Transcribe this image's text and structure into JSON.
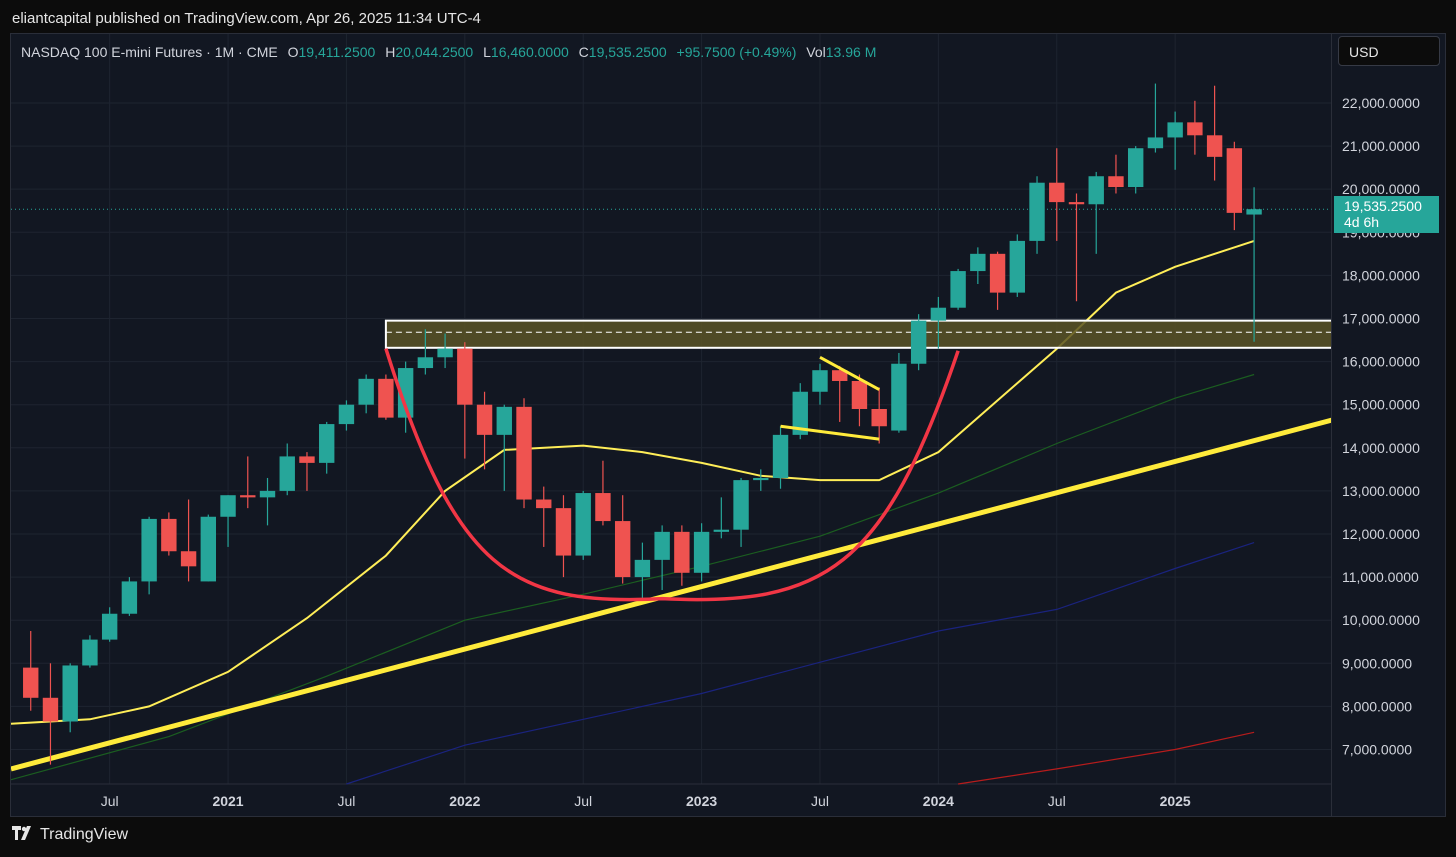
{
  "header": {
    "published": "eliantcapital published on TradingView.com, Apr 26, 2025 11:34 UTC-4"
  },
  "legend": {
    "symbol": "NASDAQ 100 E-mini Futures · 1M · CME",
    "o_label": "O",
    "o_value": "19,411.2500",
    "h_label": "H",
    "h_value": "20,044.2500",
    "l_label": "L",
    "l_value": "16,460.0000",
    "c_label": "C",
    "c_value": "19,535.2500",
    "change": "+95.7500 (+0.49%)",
    "vol_label": "Vol",
    "vol_value": "13.96 M"
  },
  "currency_button": "USD",
  "last_price": {
    "value": "19,535.2500",
    "countdown": "4d 6h"
  },
  "footer": {
    "brand": "TradingView",
    "logo": "tv-logo-icon"
  },
  "colors": {
    "up": "#26a69a",
    "down": "#ef5350",
    "background": "#121722",
    "ma_yellow": "#ffee58",
    "trend_yellow": "#ffeb3b",
    "cup_red": "#f23645",
    "ma_green": "#1b5e20",
    "ma_blue": "#1a237e",
    "ma_red": "#b71c1c",
    "zone_fill": "#5a5326"
  },
  "chart_data": {
    "type": "candlestick",
    "interval": "1M",
    "y_axis": {
      "range": [
        6200,
        23600
      ],
      "ticks": [
        7000,
        8000,
        9000,
        10000,
        11000,
        12000,
        13000,
        14000,
        15000,
        16000,
        17000,
        18000,
        19000,
        20000,
        21000,
        22000
      ],
      "tick_labels": [
        "7,000.0000",
        "8,000.0000",
        "9,000.0000",
        "10,000.0000",
        "11,000.0000",
        "12,000.0000",
        "13,000.0000",
        "14,000.0000",
        "15,000.0000",
        "16,000.0000",
        "17,000.0000",
        "18,000.0000",
        "19,000.0000",
        "20,000.0000",
        "21,000.0000",
        "22,000.0000"
      ]
    },
    "x_axis": {
      "range": [
        "2020-02",
        "2025-09"
      ],
      "ticks": [
        {
          "month": "2020-07",
          "label": "Jul",
          "bold": false
        },
        {
          "month": "2021-01",
          "label": "2021",
          "bold": true
        },
        {
          "month": "2021-07",
          "label": "Jul",
          "bold": false
        },
        {
          "month": "2022-01",
          "label": "2022",
          "bold": true
        },
        {
          "month": "2022-07",
          "label": "Jul",
          "bold": false
        },
        {
          "month": "2023-01",
          "label": "2023",
          "bold": true
        },
        {
          "month": "2023-07",
          "label": "Jul",
          "bold": false
        },
        {
          "month": "2024-01",
          "label": "2024",
          "bold": true
        },
        {
          "month": "2024-07",
          "label": "Jul",
          "bold": false
        },
        {
          "month": "2025-01",
          "label": "2025",
          "bold": true
        }
      ]
    },
    "candles": [
      {
        "month": "2020-03",
        "o": 8900,
        "h": 9750,
        "l": 7900,
        "c": 8200
      },
      {
        "month": "2020-04",
        "o": 8200,
        "h": 9000,
        "l": 6650,
        "c": 7650
      },
      {
        "month": "2020-05",
        "o": 7650,
        "h": 9000,
        "l": 7400,
        "c": 8950
      },
      {
        "month": "2020-06",
        "o": 8950,
        "h": 9650,
        "l": 8900,
        "c": 9550
      },
      {
        "month": "2020-07",
        "o": 9550,
        "h": 10300,
        "l": 9500,
        "c": 10150
      },
      {
        "month": "2020-08",
        "o": 10150,
        "h": 11000,
        "l": 10100,
        "c": 10900
      },
      {
        "month": "2020-09",
        "o": 10900,
        "h": 12400,
        "l": 10600,
        "c": 12350
      },
      {
        "month": "2020-10",
        "o": 12350,
        "h": 12500,
        "l": 11500,
        "c": 11600
      },
      {
        "month": "2020-11",
        "o": 11600,
        "h": 12800,
        "l": 10900,
        "c": 11250
      },
      {
        "month": "2020-12",
        "o": 10900,
        "h": 12450,
        "l": 10900,
        "c": 12400
      },
      {
        "month": "2021-01",
        "o": 12400,
        "h": 12900,
        "l": 11700,
        "c": 12900
      },
      {
        "month": "2021-02",
        "o": 12900,
        "h": 13800,
        "l": 12600,
        "c": 12850
      },
      {
        "month": "2021-03",
        "o": 12850,
        "h": 13300,
        "l": 12200,
        "c": 13000
      },
      {
        "month": "2021-04",
        "o": 13000,
        "h": 14100,
        "l": 12900,
        "c": 13800
      },
      {
        "month": "2021-05",
        "o": 13800,
        "h": 13900,
        "l": 13000,
        "c": 13650
      },
      {
        "month": "2021-06",
        "o": 13650,
        "h": 14600,
        "l": 13400,
        "c": 14550
      },
      {
        "month": "2021-07",
        "o": 14550,
        "h": 15100,
        "l": 14400,
        "c": 15000
      },
      {
        "month": "2021-08",
        "o": 15000,
        "h": 15700,
        "l": 14800,
        "c": 15600
      },
      {
        "month": "2021-09",
        "o": 15600,
        "h": 15700,
        "l": 14650,
        "c": 14700
      },
      {
        "month": "2021-10",
        "o": 14700,
        "h": 16000,
        "l": 14350,
        "c": 15850
      },
      {
        "month": "2021-11",
        "o": 15850,
        "h": 16750,
        "l": 15700,
        "c": 16100
      },
      {
        "month": "2021-12",
        "o": 16100,
        "h": 16650,
        "l": 15850,
        "c": 16300
      },
      {
        "month": "2022-01",
        "o": 16300,
        "h": 16450,
        "l": 13750,
        "c": 15000
      },
      {
        "month": "2022-02",
        "o": 15000,
        "h": 15300,
        "l": 13500,
        "c": 14300
      },
      {
        "month": "2022-03",
        "o": 14300,
        "h": 15000,
        "l": 13000,
        "c": 14950
      },
      {
        "month": "2022-04",
        "o": 14950,
        "h": 15150,
        "l": 12600,
        "c": 12800
      },
      {
        "month": "2022-05",
        "o": 12800,
        "h": 13100,
        "l": 11700,
        "c": 12600
      },
      {
        "month": "2022-06",
        "o": 12600,
        "h": 12900,
        "l": 11000,
        "c": 11500
      },
      {
        "month": "2022-07",
        "o": 11500,
        "h": 13000,
        "l": 11400,
        "c": 12950
      },
      {
        "month": "2022-08",
        "o": 12950,
        "h": 13700,
        "l": 12200,
        "c": 12300
      },
      {
        "month": "2022-09",
        "o": 12300,
        "h": 12900,
        "l": 10850,
        "c": 11000
      },
      {
        "month": "2022-10",
        "o": 11000,
        "h": 11800,
        "l": 10450,
        "c": 11400
      },
      {
        "month": "2022-11",
        "o": 11400,
        "h": 12200,
        "l": 10700,
        "c": 12050
      },
      {
        "month": "2022-12",
        "o": 12050,
        "h": 12200,
        "l": 10800,
        "c": 11100
      },
      {
        "month": "2023-01",
        "o": 11100,
        "h": 12250,
        "l": 10900,
        "c": 12050
      },
      {
        "month": "2023-02",
        "o": 12050,
        "h": 12850,
        "l": 11900,
        "c": 12100
      },
      {
        "month": "2023-03",
        "o": 12100,
        "h": 13300,
        "l": 11700,
        "c": 13250
      },
      {
        "month": "2023-04",
        "o": 13250,
        "h": 13500,
        "l": 13000,
        "c": 13300
      },
      {
        "month": "2023-05",
        "o": 13300,
        "h": 14500,
        "l": 13050,
        "c": 14300
      },
      {
        "month": "2023-06",
        "o": 14300,
        "h": 15500,
        "l": 14200,
        "c": 15300
      },
      {
        "month": "2023-07",
        "o": 15300,
        "h": 15950,
        "l": 15000,
        "c": 15800
      },
      {
        "month": "2023-08",
        "o": 15800,
        "h": 15900,
        "l": 14600,
        "c": 15550
      },
      {
        "month": "2023-09",
        "o": 15550,
        "h": 15700,
        "l": 14500,
        "c": 14900
      },
      {
        "month": "2023-10",
        "o": 14900,
        "h": 15400,
        "l": 14100,
        "c": 14500
      },
      {
        "month": "2023-11",
        "o": 14400,
        "h": 16200,
        "l": 14350,
        "c": 15950
      },
      {
        "month": "2023-12",
        "o": 15950,
        "h": 17100,
        "l": 15800,
        "c": 16950
      },
      {
        "month": "2024-01",
        "o": 16950,
        "h": 17500,
        "l": 16300,
        "c": 17250
      },
      {
        "month": "2024-02",
        "o": 17250,
        "h": 18150,
        "l": 17200,
        "c": 18100
      },
      {
        "month": "2024-03",
        "o": 18100,
        "h": 18650,
        "l": 17800,
        "c": 18500
      },
      {
        "month": "2024-04",
        "o": 18500,
        "h": 18550,
        "l": 17200,
        "c": 17600
      },
      {
        "month": "2024-05",
        "o": 17600,
        "h": 18950,
        "l": 17500,
        "c": 18800
      },
      {
        "month": "2024-06",
        "o": 18800,
        "h": 20300,
        "l": 18500,
        "c": 20150
      },
      {
        "month": "2024-07",
        "o": 20150,
        "h": 20950,
        "l": 18800,
        "c": 19700
      },
      {
        "month": "2024-08",
        "o": 19700,
        "h": 19900,
        "l": 17400,
        "c": 19650
      },
      {
        "month": "2024-09",
        "o": 19650,
        "h": 20400,
        "l": 18500,
        "c": 20300
      },
      {
        "month": "2024-10",
        "o": 20300,
        "h": 20800,
        "l": 19900,
        "c": 20050
      },
      {
        "month": "2024-11",
        "o": 20050,
        "h": 21000,
        "l": 19900,
        "c": 20950
      },
      {
        "month": "2024-12",
        "o": 20950,
        "h": 22450,
        "l": 20850,
        "c": 21200
      },
      {
        "month": "2025-01",
        "o": 21200,
        "h": 21800,
        "l": 20450,
        "c": 21550
      },
      {
        "month": "2025-02",
        "o": 21550,
        "h": 22050,
        "l": 20800,
        "c": 21250
      },
      {
        "month": "2025-03",
        "o": 21250,
        "h": 22400,
        "l": 20200,
        "c": 20750
      },
      {
        "month": "2025-04",
        "o": 20950,
        "h": 21100,
        "l": 19050,
        "c": 19450
      },
      {
        "month": "2025-05",
        "o": 19411.25,
        "h": 20044.25,
        "l": 16460,
        "c": 19535.25
      }
    ],
    "moving_averages": [
      {
        "color": "#ffee58",
        "points": [
          [
            "2020-02",
            7600
          ],
          [
            "2020-06",
            7700
          ],
          [
            "2020-09",
            8000
          ],
          [
            "2021-01",
            8800
          ],
          [
            "2021-05",
            10050
          ],
          [
            "2021-09",
            11500
          ],
          [
            "2021-12",
            13000
          ],
          [
            "2022-03",
            13950
          ],
          [
            "2022-07",
            14050
          ],
          [
            "2022-10",
            13900
          ],
          [
            "2023-01",
            13650
          ],
          [
            "2023-04",
            13350
          ],
          [
            "2023-07",
            13250
          ],
          [
            "2023-10",
            13250
          ],
          [
            "2024-01",
            13900
          ],
          [
            "2024-04",
            15100
          ],
          [
            "2024-07",
            16300
          ],
          [
            "2024-10",
            17600
          ],
          [
            "2025-01",
            18200
          ],
          [
            "2025-05",
            18800
          ]
        ]
      },
      {
        "color": "#1b5e20",
        "points": [
          [
            "2020-02",
            6300
          ],
          [
            "2020-10",
            7300
          ],
          [
            "2021-06",
            8700
          ],
          [
            "2022-01",
            10000
          ],
          [
            "2022-07",
            10600
          ],
          [
            "2023-01",
            11250
          ],
          [
            "2023-07",
            11950
          ],
          [
            "2024-01",
            12950
          ],
          [
            "2024-07",
            14100
          ],
          [
            "2025-01",
            15150
          ],
          [
            "2025-05",
            15700
          ]
        ]
      },
      {
        "color": "#1a237e",
        "points": [
          [
            "2021-07",
            6200
          ],
          [
            "2022-01",
            7100
          ],
          [
            "2023-01",
            8300
          ],
          [
            "2024-01",
            9750
          ],
          [
            "2024-07",
            10250
          ],
          [
            "2025-01",
            11200
          ],
          [
            "2025-05",
            11800
          ]
        ]
      },
      {
        "color": "#b71c1c",
        "points": [
          [
            "2024-02",
            6200
          ],
          [
            "2024-07",
            6550
          ],
          [
            "2025-01",
            7000
          ],
          [
            "2025-05",
            7400
          ]
        ]
      }
    ],
    "drawings": {
      "trendline": {
        "from": [
          "2020-02",
          6550
        ],
        "to": [
          "2025-09",
          14650
        ]
      },
      "resistance_zone": {
        "from": "2021-09",
        "to": "2025-09",
        "top": 16950,
        "bottom": 16320,
        "midline": 16680
      },
      "cup": {
        "start": [
          "2021-09",
          16300
        ],
        "bottom": [
          "2022-11",
          10500
        ],
        "end": [
          "2024-02",
          16250
        ]
      },
      "wedge_upper": {
        "from": [
          "2023-07",
          16100
        ],
        "to": [
          "2023-10",
          15350
        ]
      },
      "wedge_lower": {
        "from": [
          "2023-05",
          14500
        ],
        "to": [
          "2023-10",
          14200
        ]
      }
    },
    "last_price_line": 19535.25
  }
}
